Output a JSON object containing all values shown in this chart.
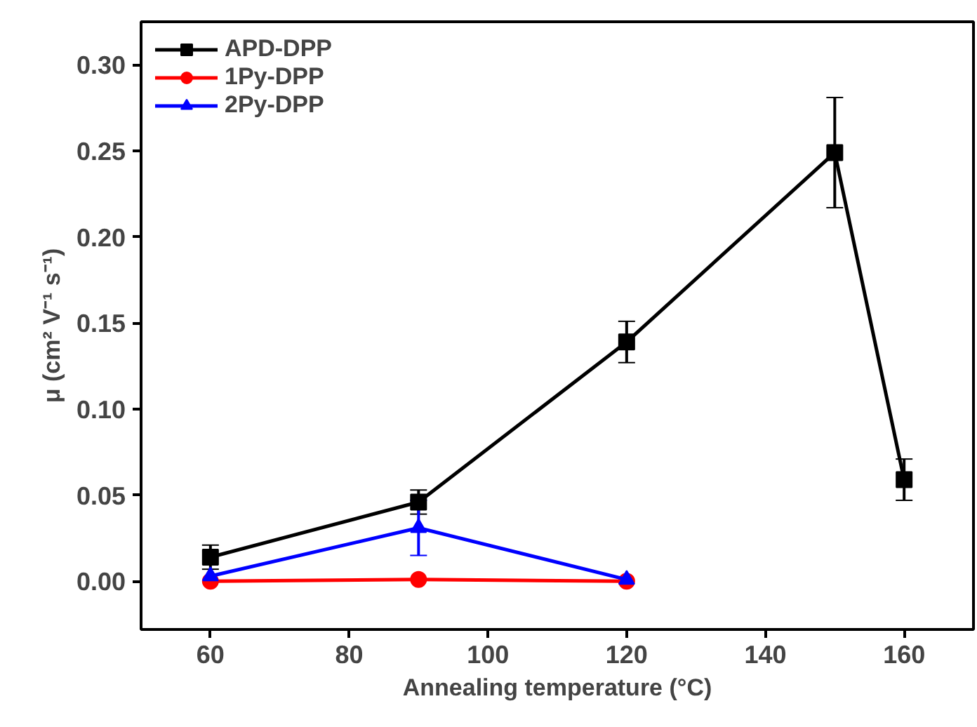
{
  "chart_data": {
    "type": "line",
    "xlabel": "Annealing temperature (°C)",
    "ylabel": "μ (cm² V⁻¹ s⁻¹)",
    "xlim": [
      50,
      170
    ],
    "xticks": [
      60,
      80,
      100,
      120,
      140,
      160
    ],
    "ylim": [
      -0.028,
      0.325
    ],
    "yticks": [
      {
        "value": 0,
        "label": "0.00"
      },
      {
        "value": 0.05,
        "label": "0.05"
      },
      {
        "value": 0.1,
        "label": "0.10"
      },
      {
        "value": 0.15,
        "label": "0.15"
      },
      {
        "value": 0.2,
        "label": "0.20"
      },
      {
        "value": 0.25,
        "label": "0.25"
      },
      {
        "value": 0.3,
        "label": "0.30"
      }
    ],
    "grid": false,
    "legend": "top left",
    "series": [
      {
        "name": "APD-DPP",
        "color": "#000000",
        "marker": "square",
        "x": [
          60,
          90,
          120,
          150,
          160
        ],
        "values": [
          0.014,
          0.046,
          0.139,
          0.249,
          0.059
        ],
        "errors": [
          0.007,
          0.007,
          0.012,
          0.032,
          0.012
        ]
      },
      {
        "name": "1Py-DPP",
        "color": "#ff0000",
        "marker": "circle",
        "x": [
          60,
          90,
          120
        ],
        "values": [
          0,
          0.001,
          0
        ]
      },
      {
        "name": "2Py-DPP",
        "color": "#0000ff",
        "marker": "triangle",
        "x": [
          60,
          90,
          120
        ],
        "values": [
          0.003,
          0.031,
          0.001
        ],
        "errors": [
          null,
          0.016,
          null
        ]
      }
    ]
  }
}
